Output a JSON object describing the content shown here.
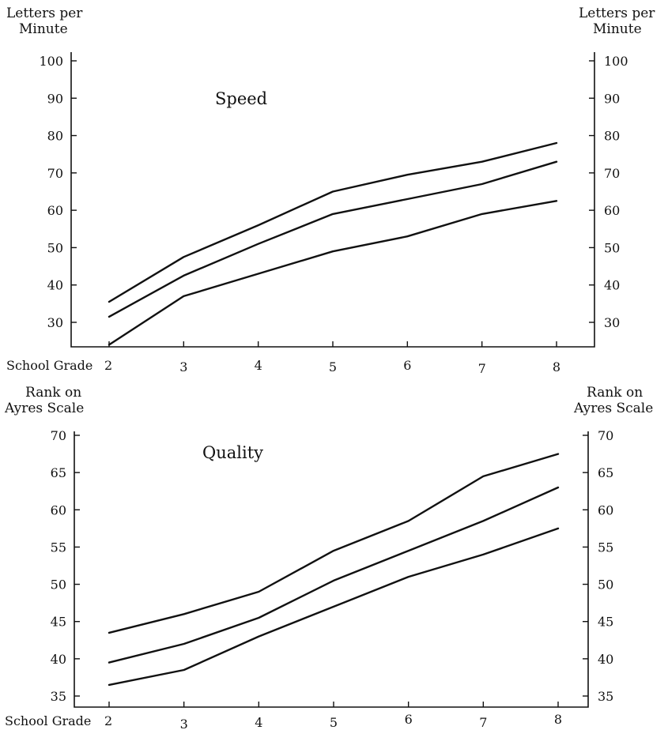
{
  "chart_data": [
    {
      "type": "line",
      "title": "Speed",
      "ylabel_left": [
        "Letters per",
        "Minute"
      ],
      "ylabel_right": [
        "Letters per",
        "Minute"
      ],
      "xlabel": "School Grade",
      "x": [
        2,
        3,
        4,
        5,
        6,
        7,
        8
      ],
      "x_tick_labels": [
        "2",
        "3",
        "4",
        "5",
        "6",
        "7",
        "8"
      ],
      "y_ticks": [
        30,
        40,
        50,
        60,
        70,
        80,
        90,
        100
      ],
      "y_tick_labels": [
        "30",
        "40",
        "50",
        "60",
        "70",
        "80",
        "90",
        "100"
      ],
      "ylim": [
        23,
        101
      ],
      "grid": false,
      "series": [
        {
          "values": [
            35.5,
            47.5,
            56,
            65,
            69.5,
            73,
            78
          ]
        },
        {
          "values": [
            31.5,
            42.5,
            51,
            59,
            63,
            67,
            73
          ]
        },
        {
          "values": [
            24,
            37,
            43,
            49,
            53,
            59,
            62.5
          ]
        }
      ]
    },
    {
      "type": "line",
      "title": "Quality",
      "ylabel_left": [
        "Rank on",
        "Ayres Scale"
      ],
      "ylabel_right": [
        "Rank on",
        "Ayres Scale"
      ],
      "xlabel": "School Grade",
      "x": [
        2,
        3,
        4,
        5,
        6,
        7,
        8
      ],
      "x_tick_labels": [
        "2",
        "3",
        "4",
        "5",
        "6",
        "7",
        "8"
      ],
      "y_ticks": [
        35,
        40,
        45,
        50,
        55,
        60,
        65,
        70
      ],
      "y_tick_labels": [
        "35",
        "40",
        "45",
        "50",
        "55",
        "60",
        "65",
        "70"
      ],
      "ylim": [
        34.5,
        70.5
      ],
      "grid": false,
      "series": [
        {
          "values": [
            43.5,
            46,
            49,
            54.5,
            58.5,
            64.5,
            67.5
          ]
        },
        {
          "values": [
            39.5,
            42,
            45.5,
            50.5,
            54.5,
            58.5,
            63
          ]
        },
        {
          "values": [
            36.5,
            38.5,
            43,
            47,
            51,
            54,
            57.5
          ]
        }
      ]
    }
  ]
}
